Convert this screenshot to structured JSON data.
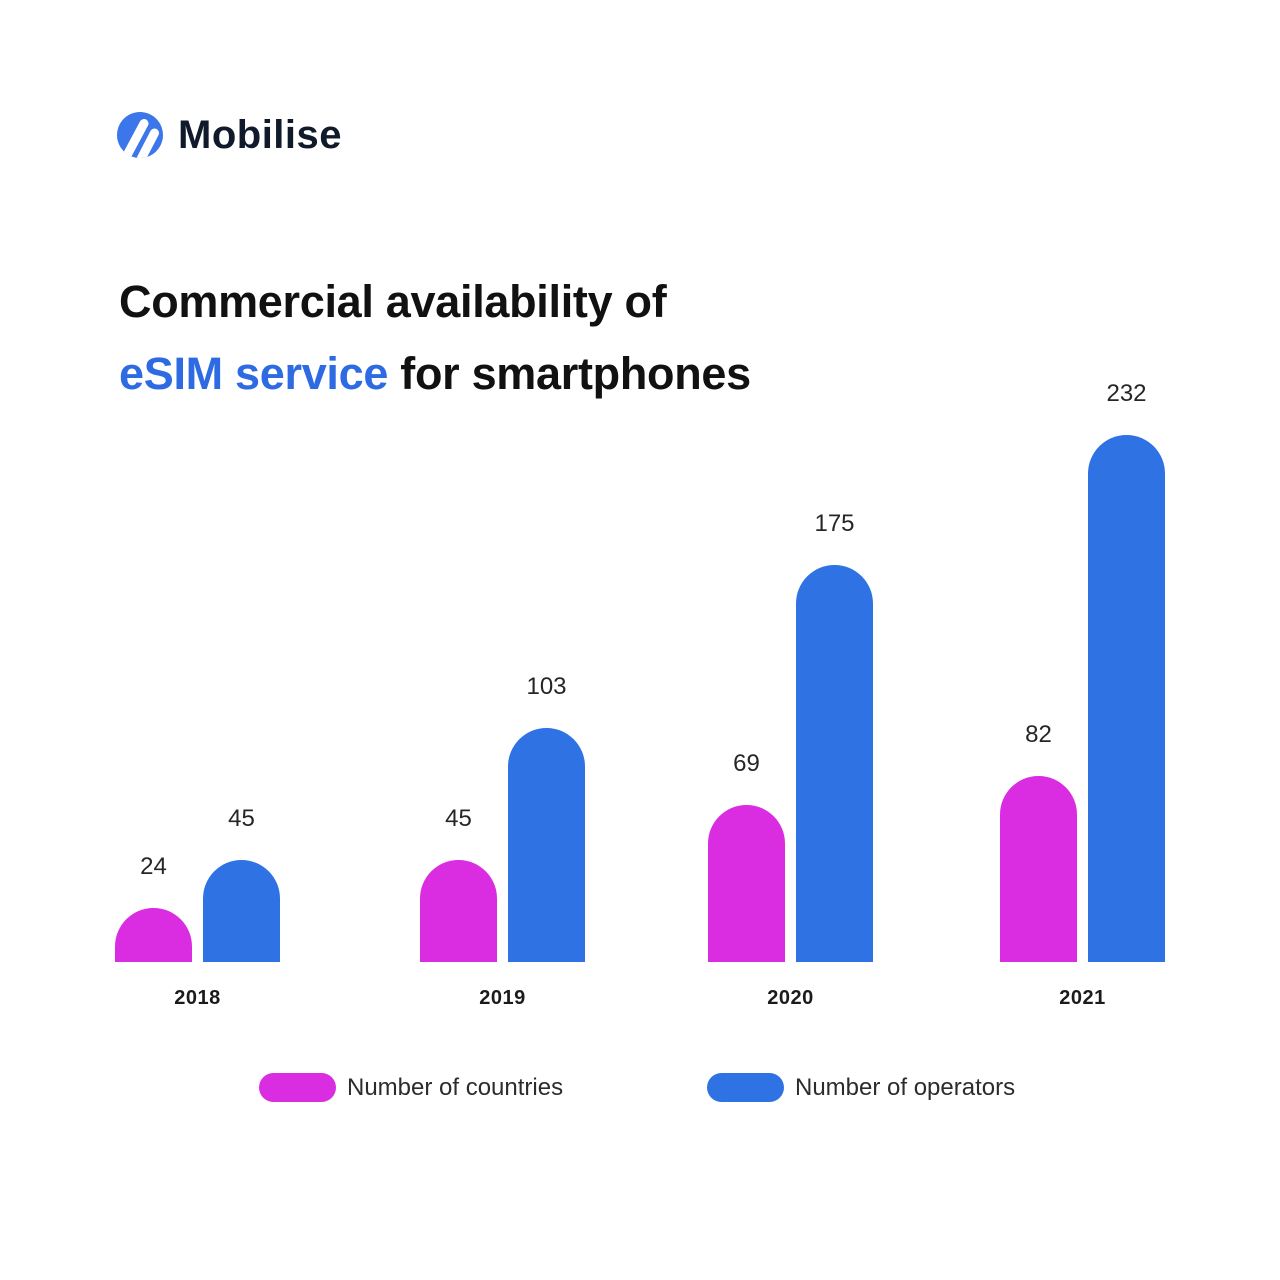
{
  "brand": {
    "name": "Mobilise",
    "logo_icon": "mobilise-logo-icon",
    "logo_color": "#3b76eb"
  },
  "title": {
    "line1": "Commercial availability of",
    "accent": "eSIM service",
    "line2_rest": " for smartphones",
    "accent_color": "#2e6be2"
  },
  "chart_data": {
    "type": "bar",
    "title": "Commercial availability of eSIM service for smartphones",
    "categories": [
      "2018",
      "2019",
      "2020",
      "2021"
    ],
    "series": [
      {
        "name": "Number of countries",
        "color": "#da2ce0",
        "values": [
          24,
          45,
          69,
          82
        ]
      },
      {
        "name": "Number of operators",
        "color": "#2f72e4",
        "values": [
          45,
          103,
          175,
          232
        ]
      }
    ],
    "xlabel": "",
    "ylabel": "",
    "ylim": [
      0,
      240
    ],
    "grid": false,
    "axes_visible": false,
    "value_labels": true,
    "legend_position": "bottom",
    "bar_style": "rounded-top"
  },
  "legend": {
    "items": [
      {
        "label": "Number of countries",
        "color": "#da2ce0"
      },
      {
        "label": "Number of operators",
        "color": "#2f72e4"
      }
    ]
  }
}
